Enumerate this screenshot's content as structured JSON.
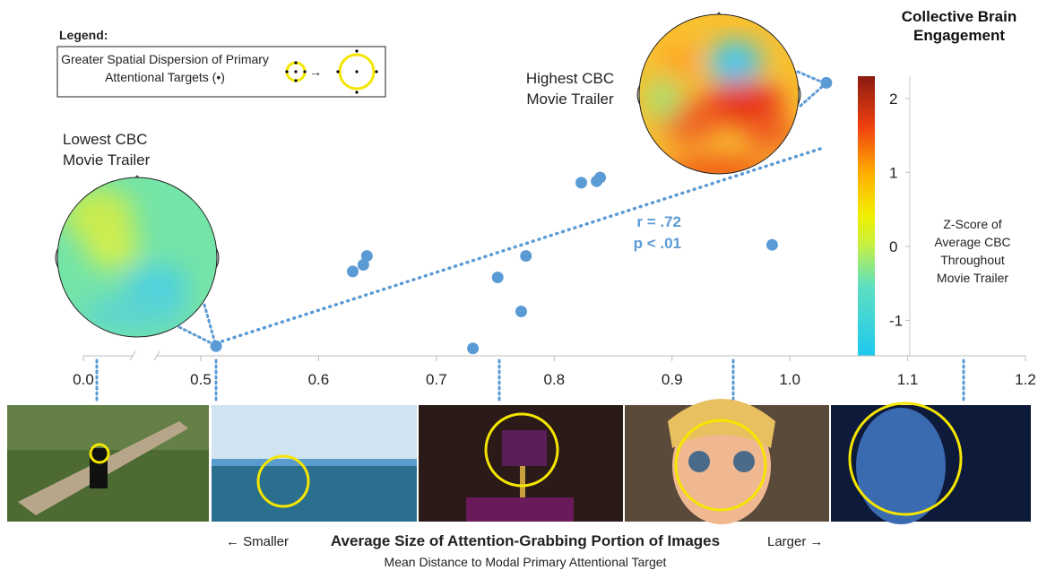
{
  "chart_data": {
    "type": "scatter",
    "x": [
      0.513,
      0.629,
      0.638,
      0.641,
      0.731,
      0.752,
      0.772,
      0.776,
      0.823,
      0.836,
      0.839,
      0.985,
      1.031
    ],
    "values": [
      -1.35,
      -0.34,
      -0.25,
      -0.13,
      -1.38,
      -0.42,
      -0.88,
      -0.13,
      0.86,
      0.88,
      0.93,
      0.02,
      2.21
    ],
    "color": "#5b9bd5",
    "trendline": {
      "x": [
        0.513,
        1.026
      ],
      "values": [
        -1.31,
        1.32
      ]
    },
    "xlim": [
      0,
      1.2
    ],
    "xticks": [
      {
        "value": 0,
        "label": "0.0"
      },
      0.5,
      0.6,
      0.7,
      0.8,
      0.9,
      {
        "value": 1,
        "label": "1.0"
      },
      1.1,
      1.2
    ],
    "ylim": [
      -1.48,
      2.3
    ],
    "colorbar": {
      "title": "Collective Brain Engagement",
      "label": "Z-Score of Average CBC Throughout Movie Trailer",
      "ticks": [
        -1,
        0,
        1,
        2
      ]
    },
    "annotations": {
      "r": "r = .72",
      "p": "p < .01",
      "lowest": "Lowest CBC Movie Trailer",
      "highest": "Highest CBC Movie Trailer"
    },
    "legend": {
      "title": "Legend:",
      "text": "Greater Spatial Dispersion of Primary Attentional Targets (•)"
    },
    "xlabel": "Average Size of Attention-Grabbing Portion of Images",
    "xlabel_left": "← Smaller",
    "xlabel_right": "Larger →",
    "subtitle": "Mean Distance to Modal Primary Attentional Target"
  }
}
